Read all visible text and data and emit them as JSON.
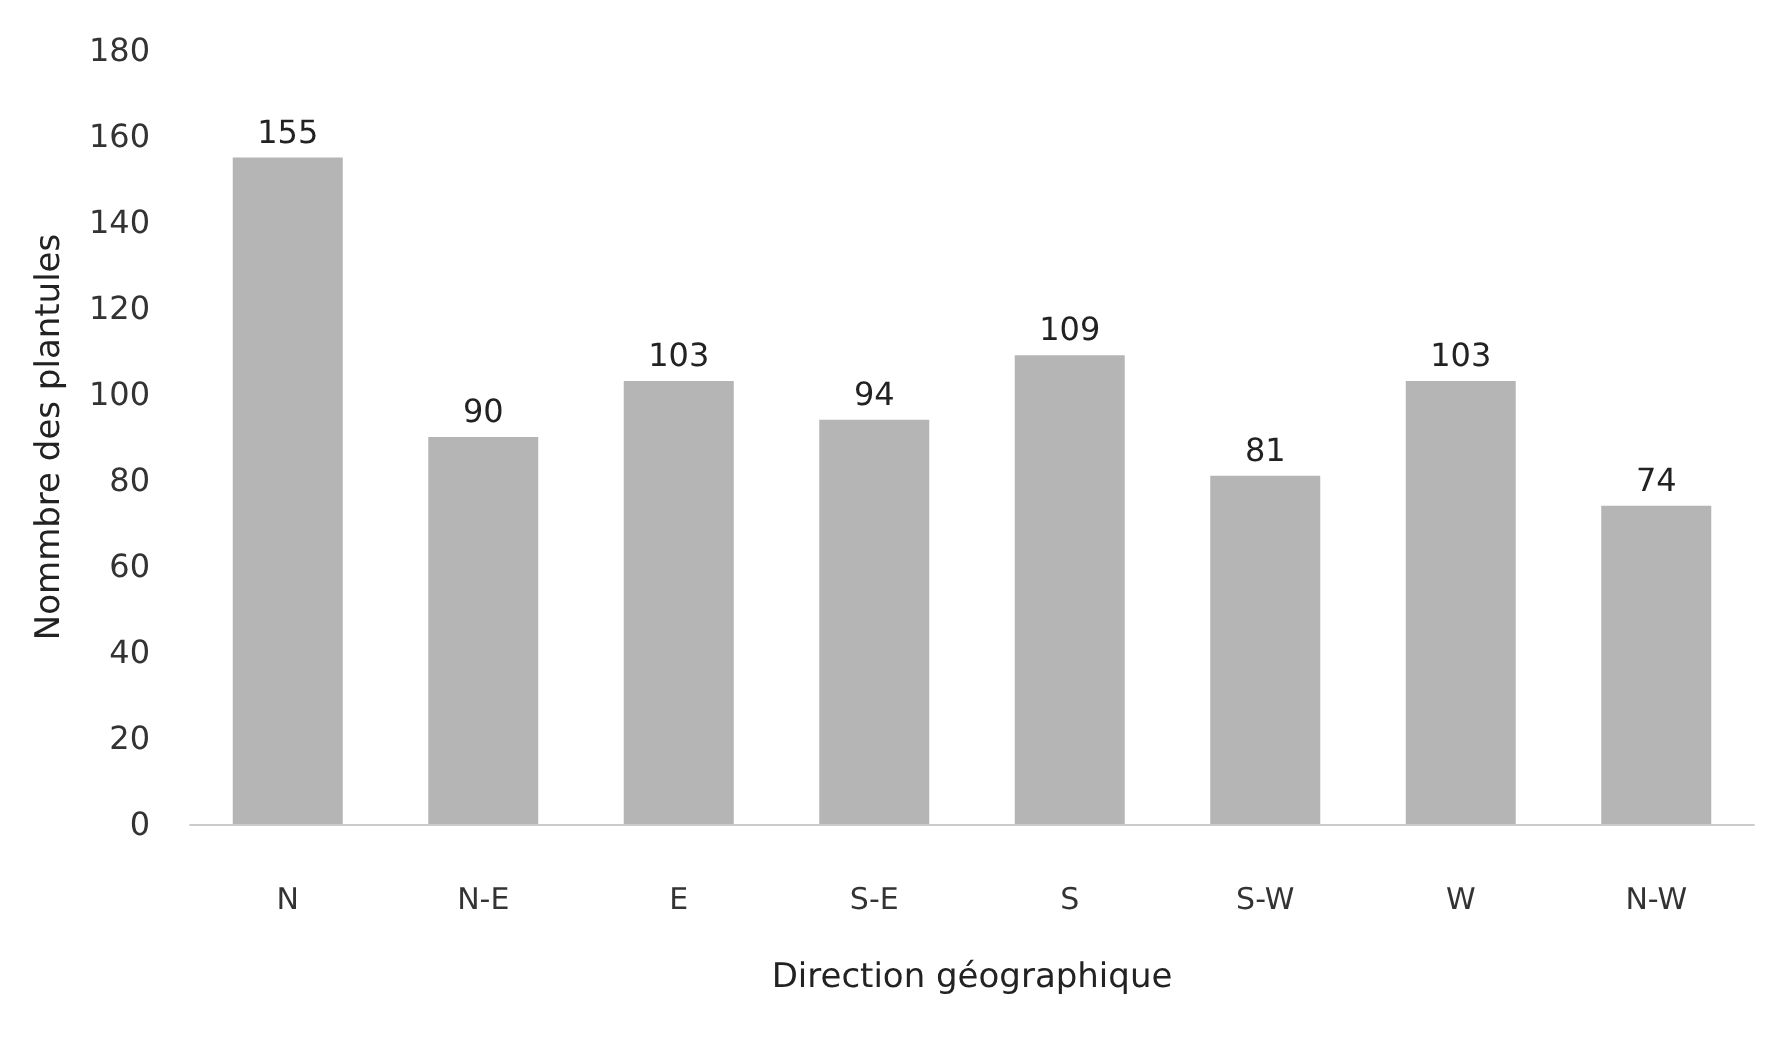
{
  "chart_data": {
    "type": "bar",
    "xlabel": "Direction géographique",
    "ylabel": "Nommbre des plantules",
    "categories": [
      "N",
      "N-E",
      "E",
      "S-E",
      "S",
      "S-W",
      "W",
      "N-W"
    ],
    "values": [
      155,
      90,
      103,
      94,
      109,
      81,
      103,
      74
    ],
    "color": "#b5b5b5",
    "ylim": [
      0,
      180
    ],
    "yticks": [
      0,
      20,
      40,
      60,
      80,
      100,
      120,
      140,
      160,
      180
    ],
    "grid": false,
    "data_labels": true
  }
}
